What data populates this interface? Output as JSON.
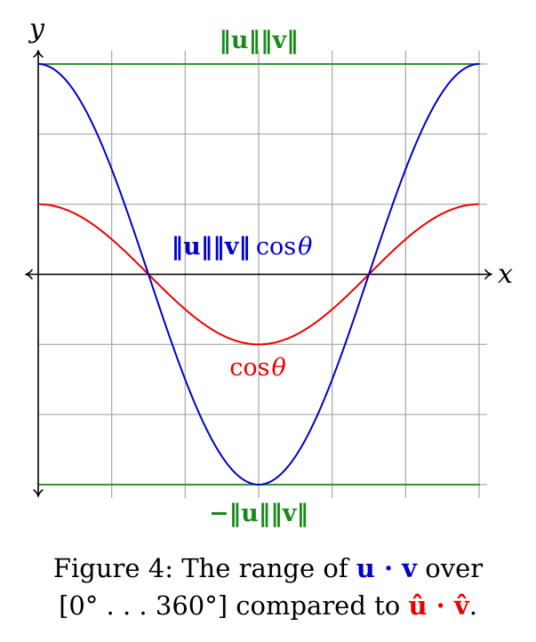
{
  "chart_data": {
    "type": "line",
    "xlabel": "x",
    "ylabel": "y",
    "x_range_degrees": [
      0,
      360
    ],
    "ylim": [
      -1.5,
      1.5
    ],
    "grid": true,
    "grid_x_count": 6,
    "grid_y_count": 6,
    "series": [
      {
        "name": "cos_theta",
        "label_func": "cos",
        "label_var": "θ",
        "amplitude": 0.5,
        "color": "#ee0000",
        "formula": "0.5 * cos(x)"
      },
      {
        "name": "norm_u_norm_v_cos_theta",
        "label_norm_u": "‖u‖",
        "label_norm_v": "‖v‖",
        "label_func": "cos",
        "label_var": "θ",
        "amplitude": 1.5,
        "color": "#0000cc",
        "formula": "1.5 * cos(x)"
      }
    ],
    "reference_lines": [
      {
        "name": "upper_bound",
        "label_norm_u": "‖u‖",
        "label_norm_v": "‖v‖",
        "value": 1.5,
        "color": "#1a8a1a"
      },
      {
        "name": "lower_bound",
        "label_sign": "−",
        "label_norm_u": "‖u‖",
        "label_norm_v": "‖v‖",
        "value": -1.5,
        "color": "#1a8a1a"
      }
    ]
  },
  "caption": {
    "prefix": "Figure 4: The range of ",
    "dot_uv": "u · v",
    "middle1": " over",
    "interval": "[0° . . . 360°]",
    "middle2": " compared to ",
    "dot_uv_hat": "û · v̂",
    "suffix": "."
  },
  "colors": {
    "grid": "#a6a6a6",
    "axis": "#000000",
    "cos": "#ee0000",
    "scaled": "#0000cc",
    "bounds": "#1a8a1a"
  }
}
